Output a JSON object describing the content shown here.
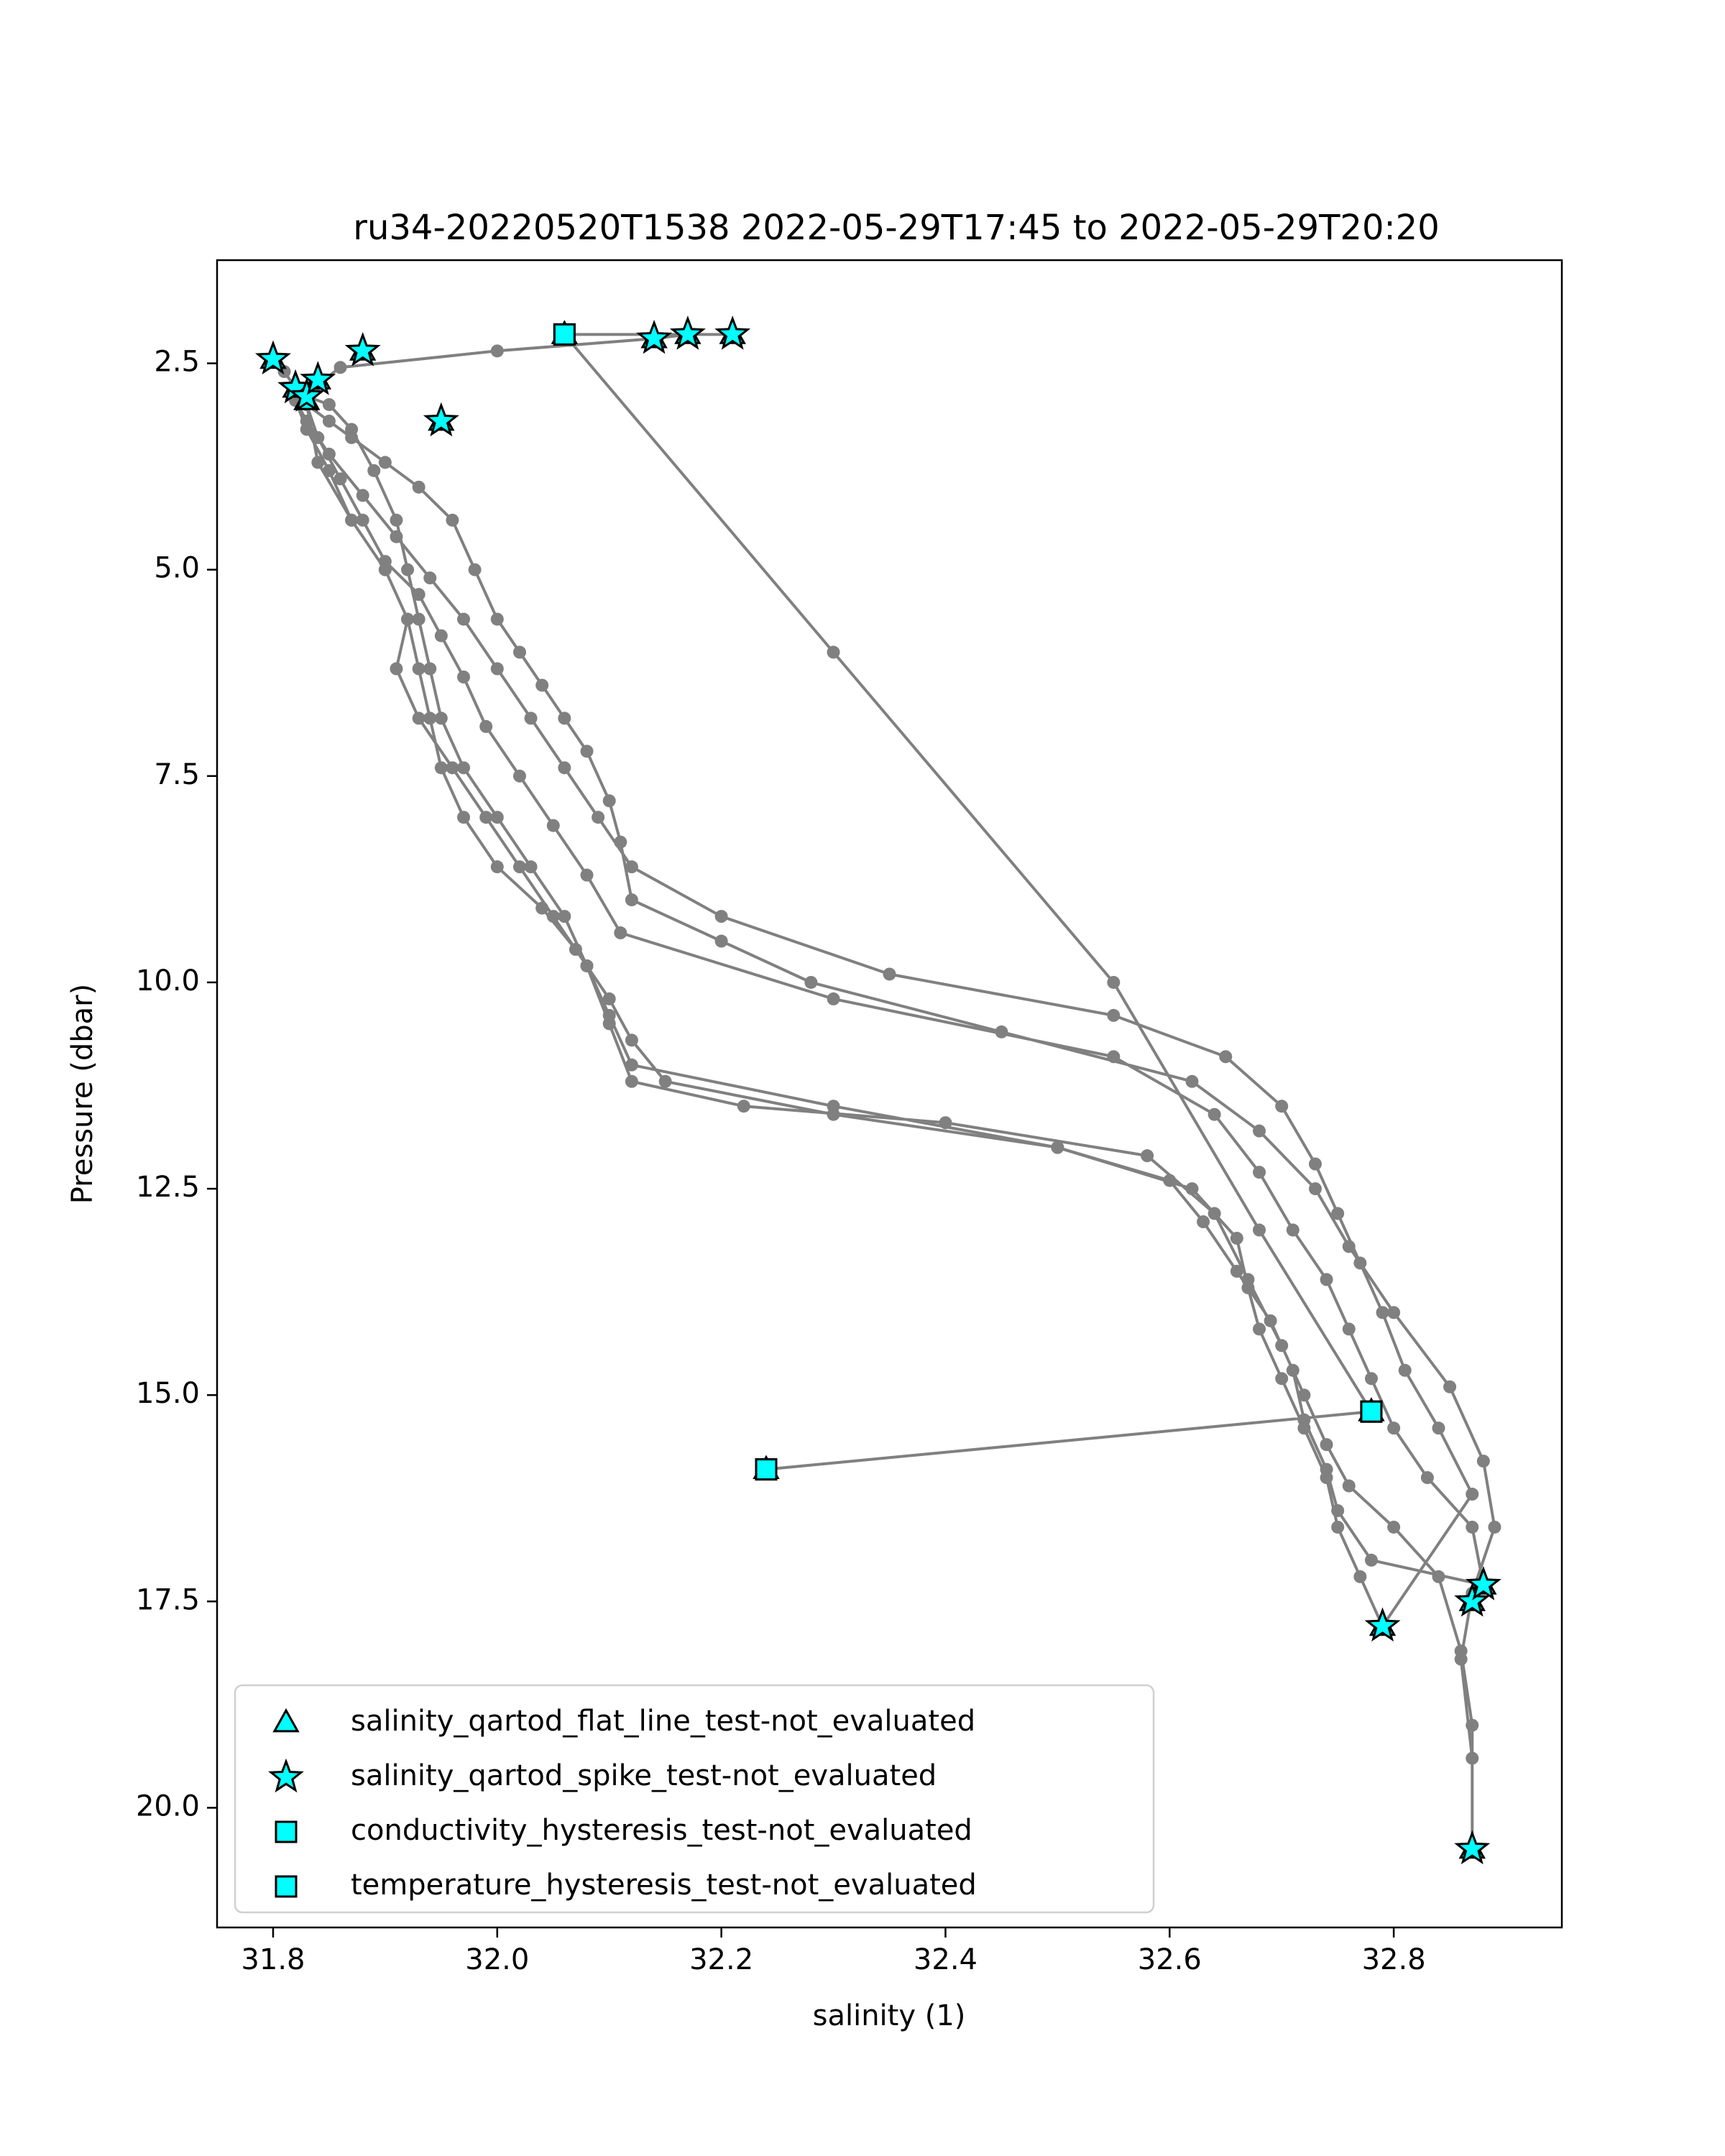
{
  "chart_data": {
    "type": "scatter",
    "title": "ru34-20220520T1538 2022-05-29T17:45 to 2022-05-29T20:20",
    "xlabel": "salinity (1)",
    "ylabel": "Pressure (dbar)",
    "xlim": [
      31.75,
      32.95
    ],
    "ylim": [
      21.45,
      1.25
    ],
    "y_inverted": true,
    "grid": false,
    "legend_placement": "lower-left",
    "x_ticks": [
      31.8,
      32.0,
      32.2,
      32.4,
      32.6,
      32.8
    ],
    "x_tick_labels": [
      "31.8",
      "32.0",
      "32.2",
      "32.4",
      "32.6",
      "32.8"
    ],
    "y_ticks": [
      2.5,
      5.0,
      7.5,
      10.0,
      12.5,
      15.0,
      17.5,
      20.0
    ],
    "y_tick_labels": [
      "2.5",
      "5.0",
      "7.5",
      "10.0",
      "12.5",
      "15.0",
      "17.5",
      "20.0"
    ],
    "colors": {
      "profile_line": "#808080",
      "flag_fill": "#00ffff",
      "flag_edge": "#000000"
    },
    "profile": {
      "x": [
        31.8,
        31.81,
        31.82,
        31.83,
        31.85,
        31.87,
        31.9,
        31.93,
        31.96,
        31.98,
        32.0,
        32.02,
        32.04,
        32.06,
        32.08,
        32.1,
        32.11,
        32.12,
        32.2,
        32.28,
        32.45,
        32.62,
        32.68,
        32.73,
        32.76,
        32.8,
        32.85,
        32.88,
        32.89,
        32.87,
        32.86,
        32.87,
        32.87,
        32.87,
        32.86,
        32.84,
        32.8,
        32.76,
        32.74,
        32.72,
        32.7,
        32.67,
        32.64,
        32.58,
        32.4,
        32.22,
        32.12,
        32.1,
        32.08,
        32.05,
        32.02,
        31.99,
        31.96,
        31.93,
        31.91,
        31.92,
        31.9,
        31.87,
        31.85,
        31.83,
        31.82,
        31.83,
        31.85,
        31.88,
        31.91,
        31.94,
        31.97,
        32.0,
        32.03,
        32.06,
        32.09,
        32.12,
        32.2,
        32.35,
        32.55,
        32.65,
        32.7,
        32.73,
        32.75,
        32.77,
        32.79,
        32.81,
        32.84,
        32.87,
        32.79,
        32.77,
        32.75,
        32.74,
        32.72,
        32.7,
        32.68,
        32.67,
        32.66,
        32.62,
        32.5,
        32.3,
        32.15,
        32.12,
        32.1,
        32.07,
        32.04,
        32.0,
        31.97,
        31.95,
        31.94,
        31.93,
        31.92,
        31.9,
        31.87,
        31.84,
        31.83,
        31.84,
        31.86,
        31.88,
        31.9,
        31.93,
        31.95,
        31.97,
        31.99,
        32.02,
        32.05,
        32.08,
        32.11,
        32.3,
        32.55,
        32.64,
        32.68,
        32.71,
        32.74,
        32.76,
        32.78,
        32.8,
        32.83,
        32.87,
        32.88,
        32.78,
        32.75,
        32.74,
        32.72,
        32.71,
        32.69,
        32.66,
        32.63,
        32.6,
        32.5,
        32.3,
        32.12,
        32.1,
        32.08,
        32.06,
        32.03,
        32.0,
        31.97,
        31.95,
        31.94,
        31.93,
        31.92,
        31.91,
        31.89,
        31.87,
        31.85,
        31.83,
        31.82,
        31.84,
        31.86,
        32.0,
        32.14,
        32.17,
        32.21,
        32.06,
        32.3,
        32.55,
        32.68,
        32.78,
        32.24
      ],
      "y": [
        2.45,
        2.6,
        2.8,
        3.0,
        3.2,
        3.4,
        3.7,
        4.0,
        4.4,
        5.0,
        5.6,
        6.0,
        6.4,
        6.8,
        7.2,
        7.8,
        8.3,
        9.0,
        9.5,
        10.0,
        10.6,
        11.2,
        11.8,
        12.5,
        13.2,
        14.0,
        14.9,
        15.8,
        16.6,
        17.4,
        18.2,
        19.4,
        20.5,
        19.0,
        18.1,
        17.2,
        16.6,
        16.1,
        15.6,
        15.0,
        14.4,
        13.6,
        12.8,
        12.1,
        11.7,
        11.5,
        11.2,
        10.5,
        9.8,
        9.2,
        8.6,
        8.0,
        7.4,
        6.8,
        6.2,
        5.6,
        5.0,
        4.4,
        3.8,
        3.3,
        2.95,
        3.2,
        3.6,
        4.1,
        4.6,
        5.1,
        5.6,
        6.2,
        6.8,
        7.4,
        8.0,
        8.6,
        9.2,
        9.9,
        10.4,
        10.9,
        11.5,
        12.2,
        12.8,
        13.4,
        14.0,
        14.7,
        15.4,
        16.2,
        17.8,
        17.2,
        16.6,
        16.0,
        15.4,
        14.8,
        14.2,
        13.7,
        13.1,
        12.5,
        12.0,
        11.6,
        11.2,
        10.7,
        10.2,
        9.6,
        9.1,
        8.6,
        8.0,
        7.4,
        6.8,
        6.2,
        5.6,
        5.0,
        4.4,
        3.7,
        3.0,
        3.4,
        3.9,
        4.4,
        4.9,
        5.3,
        5.8,
        6.3,
        6.9,
        7.5,
        8.1,
        8.7,
        9.4,
        10.2,
        10.9,
        11.6,
        12.3,
        13.0,
        13.6,
        14.2,
        14.8,
        15.4,
        16.0,
        16.6,
        17.3,
        17.0,
        16.4,
        15.9,
        15.3,
        14.7,
        14.1,
        13.5,
        12.9,
        12.4,
        12.0,
        11.5,
        11.0,
        10.4,
        9.8,
        9.2,
        8.6,
        8.0,
        7.4,
        6.8,
        6.2,
        5.6,
        5.0,
        4.4,
        3.8,
        3.3,
        3.0,
        2.9,
        2.9,
        2.75,
        2.55,
        2.35,
        2.2,
        2.15,
        2.15,
        2.15,
        6.0,
        10.0,
        13.0,
        15.2,
        15.9
      ]
    },
    "legend": [
      {
        "label": "salinity_qartod_flat_line_test-not_evaluated",
        "marker": "triangle"
      },
      {
        "label": "salinity_qartod_spike_test-not_evaluated",
        "marker": "star"
      },
      {
        "label": "conductivity_hysteresis_test-not_evaluated",
        "marker": "square"
      },
      {
        "label": "temperature_hysteresis_test-not_evaluated",
        "marker": "square"
      }
    ],
    "flags": {
      "salinity_qartod_flat_line_test-not_evaluated": [
        {
          "x": 31.8,
          "y": 2.45
        },
        {
          "x": 31.82,
          "y": 2.8
        },
        {
          "x": 31.83,
          "y": 2.95
        },
        {
          "x": 31.84,
          "y": 2.7
        },
        {
          "x": 31.88,
          "y": 2.35
        },
        {
          "x": 31.95,
          "y": 3.2
        },
        {
          "x": 32.06,
          "y": 2.15
        },
        {
          "x": 32.14,
          "y": 2.2
        },
        {
          "x": 32.17,
          "y": 2.15
        },
        {
          "x": 32.21,
          "y": 2.15
        },
        {
          "x": 32.24,
          "y": 15.9
        },
        {
          "x": 32.78,
          "y": 15.2
        },
        {
          "x": 32.79,
          "y": 17.8
        },
        {
          "x": 32.87,
          "y": 17.5
        },
        {
          "x": 32.88,
          "y": 17.3
        },
        {
          "x": 32.87,
          "y": 20.5
        }
      ],
      "salinity_qartod_spike_test-not_evaluated": [
        {
          "x": 31.8,
          "y": 2.45
        },
        {
          "x": 31.82,
          "y": 2.8
        },
        {
          "x": 31.83,
          "y": 2.9
        },
        {
          "x": 31.84,
          "y": 2.7
        },
        {
          "x": 31.88,
          "y": 2.35
        },
        {
          "x": 31.95,
          "y": 3.2
        },
        {
          "x": 32.14,
          "y": 2.2
        },
        {
          "x": 32.17,
          "y": 2.15
        },
        {
          "x": 32.21,
          "y": 2.15
        },
        {
          "x": 32.79,
          "y": 17.8
        },
        {
          "x": 32.87,
          "y": 17.5
        },
        {
          "x": 32.88,
          "y": 17.3
        },
        {
          "x": 32.87,
          "y": 20.5
        }
      ],
      "conductivity_hysteresis_test-not_evaluated": [
        {
          "x": 32.06,
          "y": 2.15
        },
        {
          "x": 32.24,
          "y": 15.9
        },
        {
          "x": 32.78,
          "y": 15.2
        }
      ],
      "temperature_hysteresis_test-not_evaluated": [
        {
          "x": 32.06,
          "y": 2.15
        },
        {
          "x": 32.24,
          "y": 15.9
        },
        {
          "x": 32.78,
          "y": 15.2
        }
      ]
    }
  }
}
